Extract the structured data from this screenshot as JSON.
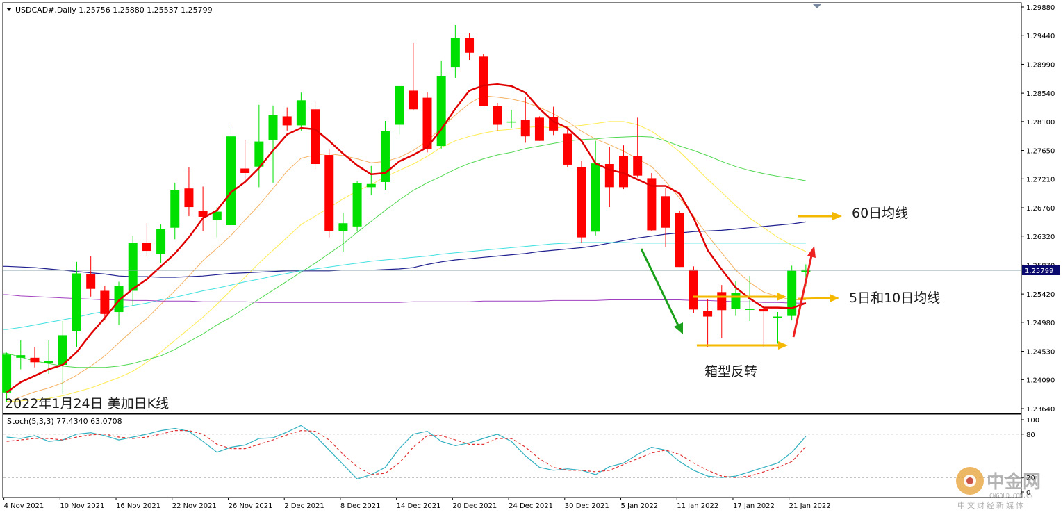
{
  "header": {
    "symbol_line": "USDCAD#,Daily  1.25756 1.25880 1.25537 1.25799"
  },
  "caption": "2022年1月24日 美加日K线",
  "price_tag": "1.25799",
  "stoch_label": "Stoch(5,3,3) 77.4340 63.0708",
  "annotations": {
    "ma60": "60日均线",
    "ma5_10": "5日和10日均线",
    "box": "箱型反转"
  },
  "logo": {
    "main": "中金网",
    "url": "CNGOLD.COM.CN",
    "tagline": "中文财经新媒体"
  },
  "colors": {
    "bull": "#00e000",
    "bear": "#ff0000",
    "ma5": "#e00000",
    "ma10": "#f5b060",
    "ma20": "#ffeb50",
    "ma30": "#50d850",
    "ma60": "#202090",
    "ma120": "#40e0e0",
    "ma200": "#a040c0",
    "stoch_main": "#30b0c0",
    "stoch_signal": "#e03030",
    "arrow_yellow": "#f5b800",
    "arrow_green": "#1aa01a",
    "arrow_red": "#ee2020"
  },
  "chart_data": [
    {
      "type": "candlestick",
      "title": "USDCAD#,Daily",
      "ylim": [
        1.2364,
        1.2988
      ],
      "price_ticks": [
        "1.29880",
        "1.29440",
        "1.28990",
        "1.28540",
        "1.28100",
        "1.27650",
        "1.27210",
        "1.26760",
        "1.26320",
        "1.25870",
        "1.25420",
        "1.24980",
        "1.24530",
        "1.24090",
        "1.23640"
      ],
      "x_tick_labels": [
        "4 Nov 2021",
        "10 Nov 2021",
        "16 Nov 2021",
        "22 Nov 2021",
        "26 Nov 2021",
        "2 Dec 2021",
        "8 Dec 2021",
        "14 Dec 2021",
        "20 Dec 2021",
        "24 Dec 2021",
        "30 Dec 2021",
        "5 Jan 2022",
        "11 Jan 2022",
        "17 Jan 2022",
        "21 Jan 2022"
      ],
      "candles": [
        {
          "o": 1.2389,
          "h": 1.2451,
          "l": 1.2374,
          "c": 1.2448
        },
        {
          "o": 1.2443,
          "h": 1.247,
          "l": 1.2425,
          "c": 1.2447
        },
        {
          "o": 1.2443,
          "h": 1.2459,
          "l": 1.2428,
          "c": 1.2436
        },
        {
          "o": 1.2435,
          "h": 1.247,
          "l": 1.2418,
          "c": 1.2438
        },
        {
          "o": 1.2432,
          "h": 1.25,
          "l": 1.2387,
          "c": 1.2478
        },
        {
          "o": 1.2484,
          "h": 1.2592,
          "l": 1.246,
          "c": 1.2574
        },
        {
          "o": 1.2573,
          "h": 1.2601,
          "l": 1.2538,
          "c": 1.255
        },
        {
          "o": 1.2547,
          "h": 1.2555,
          "l": 1.2501,
          "c": 1.2511
        },
        {
          "o": 1.2514,
          "h": 1.2561,
          "l": 1.2494,
          "c": 1.2554
        },
        {
          "o": 1.2547,
          "h": 1.2632,
          "l": 1.2523,
          "c": 1.2622
        },
        {
          "o": 1.2621,
          "h": 1.2652,
          "l": 1.2601,
          "c": 1.2609
        },
        {
          "o": 1.2604,
          "h": 1.265,
          "l": 1.259,
          "c": 1.2643
        },
        {
          "o": 1.2645,
          "h": 1.2715,
          "l": 1.2627,
          "c": 1.2704
        },
        {
          "o": 1.2706,
          "h": 1.2739,
          "l": 1.2663,
          "c": 1.2677
        },
        {
          "o": 1.2671,
          "h": 1.2709,
          "l": 1.264,
          "c": 1.2662
        },
        {
          "o": 1.2657,
          "h": 1.2677,
          "l": 1.263,
          "c": 1.267
        },
        {
          "o": 1.2649,
          "h": 1.2801,
          "l": 1.2642,
          "c": 1.2787
        },
        {
          "o": 1.2737,
          "h": 1.2781,
          "l": 1.2716,
          "c": 1.273
        },
        {
          "o": 1.274,
          "h": 1.2836,
          "l": 1.2708,
          "c": 1.2779
        },
        {
          "o": 1.2781,
          "h": 1.2835,
          "l": 1.2715,
          "c": 1.282
        },
        {
          "o": 1.2818,
          "h": 1.2832,
          "l": 1.2796,
          "c": 1.2804
        },
        {
          "o": 1.2804,
          "h": 1.2855,
          "l": 1.2796,
          "c": 1.2843
        },
        {
          "o": 1.2829,
          "h": 1.2841,
          "l": 1.2736,
          "c": 1.2744
        },
        {
          "o": 1.2758,
          "h": 1.2767,
          "l": 1.263,
          "c": 1.264
        },
        {
          "o": 1.264,
          "h": 1.2668,
          "l": 1.2608,
          "c": 1.2652
        },
        {
          "o": 1.2647,
          "h": 1.2717,
          "l": 1.264,
          "c": 1.2714
        },
        {
          "o": 1.2708,
          "h": 1.2741,
          "l": 1.2696,
          "c": 1.2713
        },
        {
          "o": 1.2716,
          "h": 1.2811,
          "l": 1.2703,
          "c": 1.2795
        },
        {
          "o": 1.2805,
          "h": 1.2865,
          "l": 1.279,
          "c": 1.2865
        },
        {
          "o": 1.2858,
          "h": 1.2932,
          "l": 1.2827,
          "c": 1.2829
        },
        {
          "o": 1.2847,
          "h": 1.2856,
          "l": 1.2762,
          "c": 1.2767
        },
        {
          "o": 1.2772,
          "h": 1.2904,
          "l": 1.2768,
          "c": 1.2881
        },
        {
          "o": 1.2894,
          "h": 1.296,
          "l": 1.2878,
          "c": 1.294
        },
        {
          "o": 1.294,
          "h": 1.2947,
          "l": 1.2905,
          "c": 1.2917
        },
        {
          "o": 1.2911,
          "h": 1.2915,
          "l": 1.2834,
          "c": 1.2834
        },
        {
          "o": 1.2834,
          "h": 1.2839,
          "l": 1.2796,
          "c": 1.2805
        },
        {
          "o": 1.281,
          "h": 1.2828,
          "l": 1.28,
          "c": 1.281
        },
        {
          "o": 1.2813,
          "h": 1.2848,
          "l": 1.2777,
          "c": 1.2787
        },
        {
          "o": 1.2816,
          "h": 1.2818,
          "l": 1.278,
          "c": 1.278
        },
        {
          "o": 1.2817,
          "h": 1.2833,
          "l": 1.2789,
          "c": 1.2796
        },
        {
          "o": 1.2791,
          "h": 1.2798,
          "l": 1.2739,
          "c": 1.2743
        },
        {
          "o": 1.2739,
          "h": 1.2749,
          "l": 1.2621,
          "c": 1.263
        },
        {
          "o": 1.2639,
          "h": 1.278,
          "l": 1.2633,
          "c": 1.2745
        },
        {
          "o": 1.2744,
          "h": 1.277,
          "l": 1.2677,
          "c": 1.2708
        },
        {
          "o": 1.2757,
          "h": 1.2773,
          "l": 1.2705,
          "c": 1.2708
        },
        {
          "o": 1.2756,
          "h": 1.2816,
          "l": 1.2723,
          "c": 1.2726
        },
        {
          "o": 1.2722,
          "h": 1.273,
          "l": 1.264,
          "c": 1.2641
        },
        {
          "o": 1.2694,
          "h": 1.2707,
          "l": 1.2615,
          "c": 1.2645
        },
        {
          "o": 1.2668,
          "h": 1.2671,
          "l": 1.2584,
          "c": 1.2584
        },
        {
          "o": 1.258,
          "h": 1.2585,
          "l": 1.2513,
          "c": 1.2518
        },
        {
          "o": 1.2516,
          "h": 1.2534,
          "l": 1.246,
          "c": 1.2507
        },
        {
          "o": 1.2545,
          "h": 1.2556,
          "l": 1.2474,
          "c": 1.2517
        },
        {
          "o": 1.2519,
          "h": 1.2562,
          "l": 1.2508,
          "c": 1.2544
        },
        {
          "o": 1.2519,
          "h": 1.257,
          "l": 1.25,
          "c": 1.2519
        },
        {
          "o": 1.2519,
          "h": 1.2523,
          "l": 1.2459,
          "c": 1.2515
        },
        {
          "o": 1.2506,
          "h": 1.2514,
          "l": 1.2465,
          "c": 1.2507
        },
        {
          "o": 1.2508,
          "h": 1.2586,
          "l": 1.2501,
          "c": 1.2578
        },
        {
          "o": 1.2576,
          "h": 1.2588,
          "l": 1.2554,
          "c": 1.258
        }
      ],
      "moving_averages": [
        {
          "name": "MA5",
          "values": [
            1.2389,
            1.2405,
            1.2415,
            1.2425,
            1.2432,
            1.2452,
            1.248,
            1.2505,
            1.2532,
            1.255,
            1.2565,
            1.2585,
            1.2605,
            1.263,
            1.266,
            1.2672,
            1.27,
            1.2716,
            1.2738,
            1.2765,
            1.279,
            1.28,
            1.2798,
            1.278,
            1.276,
            1.2742,
            1.2728,
            1.273,
            1.2748,
            1.2758,
            1.277,
            1.2798,
            1.283,
            1.2858,
            1.2866,
            1.2868,
            1.2865,
            1.2855,
            1.283,
            1.281,
            1.28,
            1.278,
            1.2745,
            1.2735,
            1.273,
            1.272,
            1.271,
            1.271,
            1.2698,
            1.266,
            1.261,
            1.258,
            1.2552,
            1.2535,
            1.2521,
            1.2521,
            1.252,
            1.2528
          ]
        },
        {
          "name": "MA10",
          "values": [
            1.2374,
            1.2382,
            1.239,
            1.2396,
            1.2404,
            1.2416,
            1.243,
            1.2446,
            1.2466,
            1.2486,
            1.2504,
            1.2526,
            1.2547,
            1.257,
            1.2594,
            1.2613,
            1.2633,
            1.2657,
            1.268,
            1.2706,
            1.2733,
            1.2753,
            1.2758,
            1.276,
            1.2757,
            1.2752,
            1.2746,
            1.2748,
            1.2754,
            1.2765,
            1.278,
            1.28,
            1.282,
            1.2838,
            1.285,
            1.2848,
            1.2845,
            1.284,
            1.2832,
            1.2822,
            1.281,
            1.2795,
            1.2783,
            1.2774,
            1.2764,
            1.2752,
            1.274,
            1.2717,
            1.2691,
            1.2663,
            1.2633,
            1.2606,
            1.2579,
            1.256,
            1.2545,
            1.2538,
            1.2533,
            1.2533
          ]
        },
        {
          "name": "MA20",
          "values": [
            1.2375,
            1.2376,
            1.2378,
            1.238,
            1.2384,
            1.239,
            1.2396,
            1.2404,
            1.2412,
            1.2422,
            1.2436,
            1.2452,
            1.247,
            1.2488,
            1.2506,
            1.2526,
            1.2548,
            1.2568,
            1.259,
            1.261,
            1.263,
            1.265,
            1.2663,
            1.2676,
            1.269,
            1.2702,
            1.2712,
            1.2724,
            1.2734,
            1.2744,
            1.2756,
            1.277,
            1.278,
            1.2787,
            1.2792,
            1.2796,
            1.2798,
            1.2801,
            1.2802,
            1.28,
            1.2802,
            1.2804,
            1.2807,
            1.281,
            1.281,
            1.2805,
            1.2795,
            1.278,
            1.2763,
            1.2742,
            1.272,
            1.27,
            1.2679,
            1.266,
            1.2645,
            1.263,
            1.2618,
            1.2608
          ]
        },
        {
          "name": "MA30",
          "values": [
            1.245,
            1.2444,
            1.2438,
            1.2434,
            1.243,
            1.2428,
            1.2428,
            1.2428,
            1.243,
            1.2434,
            1.244,
            1.2446,
            1.2456,
            1.2468,
            1.248,
            1.2494,
            1.2506,
            1.252,
            1.2534,
            1.2548,
            1.2562,
            1.2576,
            1.259,
            1.2605,
            1.262,
            1.2638,
            1.2655,
            1.2672,
            1.2688,
            1.2703,
            1.2715,
            1.2725,
            1.2736,
            1.2745,
            1.2752,
            1.2758,
            1.2762,
            1.2768,
            1.2772,
            1.2776,
            1.278,
            1.2782,
            1.2783,
            1.2785,
            1.2786,
            1.2787,
            1.2786,
            1.278,
            1.2772,
            1.2765,
            1.2757,
            1.2748,
            1.274,
            1.2734,
            1.2729,
            1.2725,
            1.2722,
            1.2718
          ]
        },
        {
          "name": "MA60",
          "values": [
            1.2585,
            1.2584,
            1.2583,
            1.2581,
            1.2579,
            1.2577,
            1.2575,
            1.2573,
            1.257,
            1.2569,
            1.2569,
            1.2568,
            1.2568,
            1.2569,
            1.257,
            1.2572,
            1.2574,
            1.2575,
            1.2576,
            1.2577,
            1.2578,
            1.2578,
            1.2578,
            1.2578,
            1.2579,
            1.2579,
            1.2579,
            1.258,
            1.2581,
            1.2583,
            1.2588,
            1.2592,
            1.2595,
            1.2597,
            1.2599,
            1.2601,
            1.2603,
            1.2605,
            1.2608,
            1.261,
            1.2612,
            1.2614,
            1.2617,
            1.2621,
            1.2625,
            1.2629,
            1.2632,
            1.2635,
            1.2637,
            1.2639,
            1.264,
            1.2641,
            1.2643,
            1.2645,
            1.2647,
            1.2649,
            1.2651,
            1.2654
          ]
        },
        {
          "name": "MA120",
          "values": [
            1.2487,
            1.249,
            1.2494,
            1.2498,
            1.2502,
            1.2506,
            1.2511,
            1.2515,
            1.252,
            1.2524,
            1.2528,
            1.2533,
            1.2537,
            1.2542,
            1.2547,
            1.2551,
            1.2556,
            1.2561,
            1.2565,
            1.257,
            1.2574,
            1.2578,
            1.2581,
            1.2584,
            1.2587,
            1.259,
            1.2593,
            1.2595,
            1.2597,
            1.2599,
            1.2601,
            1.2604,
            1.2606,
            1.2608,
            1.261,
            1.2612,
            1.2614,
            1.2616,
            1.2618,
            1.262,
            1.2621,
            1.2622,
            1.2622,
            1.2622,
            1.2622,
            1.2621,
            1.2621,
            1.2621,
            1.2621,
            1.2621,
            1.2621,
            1.2621,
            1.2621,
            1.2621,
            1.2621,
            1.2621,
            1.2621,
            1.2621
          ]
        },
        {
          "name": "MA200",
          "values": [
            1.2541,
            1.2539,
            1.2538,
            1.2537,
            1.2536,
            1.2535,
            1.2534,
            1.2533,
            1.2533,
            1.2532,
            1.2532,
            1.2531,
            1.2531,
            1.2531,
            1.253,
            1.253,
            1.253,
            1.253,
            1.2529,
            1.2529,
            1.2529,
            1.2529,
            1.2529,
            1.2529,
            1.2529,
            1.2529,
            1.2529,
            1.2529,
            1.2529,
            1.253,
            1.253,
            1.253,
            1.253,
            1.253,
            1.2531,
            1.2531,
            1.2531,
            1.2531,
            1.2531,
            1.2532,
            1.2532,
            1.2532,
            1.2532,
            1.2533,
            1.2533,
            1.2533,
            1.2533,
            1.2533,
            1.2533,
            1.2532,
            1.2532,
            1.2531,
            1.253,
            1.253,
            1.2529,
            1.2529,
            1.2528,
            1.2528
          ]
        }
      ]
    },
    {
      "type": "line",
      "title": "Stoch(5,3,3) 77.4340 63.0708",
      "ylim": [
        0,
        100
      ],
      "y_ticks": [
        100,
        80,
        20,
        0
      ],
      "levels": [
        80,
        20
      ],
      "series": [
        {
          "name": "main",
          "values": [
            76,
            74,
            78,
            70,
            72,
            80,
            82,
            78,
            72,
            76,
            80,
            85,
            88,
            84,
            70,
            55,
            62,
            65,
            74,
            75,
            83,
            92,
            78,
            58,
            38,
            18,
            24,
            34,
            60,
            80,
            84,
            70,
            64,
            68,
            74,
            80,
            70,
            50,
            34,
            30,
            32,
            30,
            24,
            35,
            40,
            52,
            62,
            58,
            42,
            30,
            22,
            20,
            22,
            28,
            34,
            40,
            55,
            77
          ]
        },
        {
          "name": "signal",
          "values": [
            70,
            72,
            74,
            74,
            72,
            76,
            79,
            80,
            76,
            74,
            76,
            80,
            85,
            85,
            80,
            66,
            60,
            60,
            66,
            72,
            79,
            85,
            84,
            72,
            52,
            35,
            24,
            26,
            40,
            62,
            78,
            78,
            72,
            66,
            66,
            74,
            74,
            62,
            46,
            34,
            30,
            30,
            28,
            30,
            38,
            46,
            54,
            58,
            52,
            40,
            30,
            22,
            20,
            22,
            28,
            34,
            42,
            63
          ]
        }
      ]
    }
  ]
}
